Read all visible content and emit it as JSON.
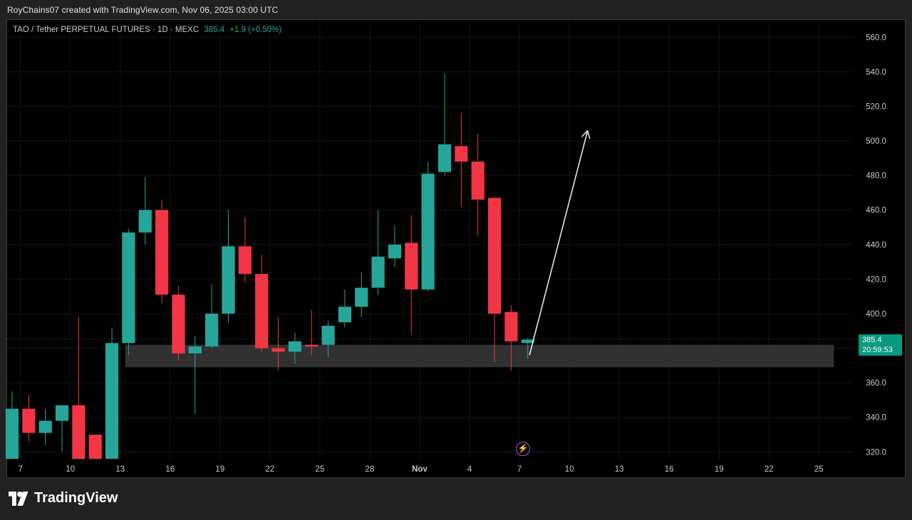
{
  "header": {
    "attribution": "RoyChains07 created with TradingView.com, Nov 06, 2025 03:00 UTC"
  },
  "legend": {
    "symbol": "TAO / Tether PERPETUAL FUTURES · 1D · MEXC",
    "last": "385.4",
    "change": "+1.9 (+0.50%)"
  },
  "price_tag": {
    "price": "385.4",
    "countdown": "20:59:53"
  },
  "brand": {
    "name": "TradingView",
    "icon": "tradingview-logo-icon"
  },
  "colors": {
    "up": "#26a69a",
    "down": "#f23645",
    "background": "#000000",
    "zone": "#3a3a3a",
    "arrow": "#e6e6e6"
  },
  "chart_data": {
    "type": "candlestick",
    "y_ticks": [
      "560.0",
      "540.0",
      "520.0",
      "500.0",
      "480.0",
      "460.0",
      "440.0",
      "420.0",
      "400.0",
      "380.0",
      "360.0",
      "340.0",
      "320.0"
    ],
    "y_tick_values": [
      560,
      540,
      520,
      500,
      480,
      460,
      440,
      420,
      400,
      380,
      360,
      340,
      320
    ],
    "x_ticks": [
      {
        "day": 7,
        "label": "7"
      },
      {
        "day": 10,
        "label": "10"
      },
      {
        "day": 13,
        "label": "13"
      },
      {
        "day": 16,
        "label": "16"
      },
      {
        "day": 19,
        "label": "19"
      },
      {
        "day": 22,
        "label": "22"
      },
      {
        "day": 25,
        "label": "25"
      },
      {
        "day": 28,
        "label": "28"
      },
      {
        "day": 31,
        "label": "Nov"
      },
      {
        "day": 34,
        "label": "4"
      },
      {
        "day": 37,
        "label": "7"
      },
      {
        "day": 40,
        "label": "10"
      },
      {
        "day": 43,
        "label": "13"
      },
      {
        "day": 46,
        "label": "16"
      },
      {
        "day": 49,
        "label": "19"
      },
      {
        "day": 52,
        "label": "22"
      },
      {
        "day": 55,
        "label": "25"
      }
    ],
    "ylim": [
      316,
      570
    ],
    "xlim": [
      6.2,
      57
    ],
    "candles": [
      {
        "d": 6.5,
        "o": 316,
        "h": 355,
        "l": 316,
        "c": 345
      },
      {
        "d": 7.5,
        "o": 345,
        "h": 353,
        "l": 326,
        "c": 331
      },
      {
        "d": 8.5,
        "o": 331,
        "h": 345,
        "l": 324,
        "c": 338
      },
      {
        "d": 9.5,
        "o": 338,
        "h": 347,
        "l": 320,
        "c": 347
      },
      {
        "d": 10.5,
        "o": 347,
        "h": 398,
        "l": 316,
        "c": 316
      },
      {
        "d": 11.5,
        "o": 330,
        "h": 330,
        "l": 316,
        "c": 316
      },
      {
        "d": 12.5,
        "o": 316,
        "h": 392,
        "l": 316,
        "c": 383
      },
      {
        "d": 13.5,
        "o": 383,
        "h": 449,
        "l": 376,
        "c": 447
      },
      {
        "d": 14.5,
        "o": 447,
        "h": 479,
        "l": 440,
        "c": 460
      },
      {
        "d": 15.5,
        "o": 460,
        "h": 466,
        "l": 406,
        "c": 411
      },
      {
        "d": 16.5,
        "o": 411,
        "h": 416,
        "l": 373,
        "c": 377
      },
      {
        "d": 17.5,
        "o": 377,
        "h": 387,
        "l": 342,
        "c": 381
      },
      {
        "d": 18.5,
        "o": 381,
        "h": 417,
        "l": 380,
        "c": 400
      },
      {
        "d": 19.5,
        "o": 400,
        "h": 460,
        "l": 395,
        "c": 439
      },
      {
        "d": 20.5,
        "o": 439,
        "h": 456,
        "l": 418,
        "c": 423
      },
      {
        "d": 21.5,
        "o": 423,
        "h": 434,
        "l": 378,
        "c": 380
      },
      {
        "d": 22.5,
        "o": 380,
        "h": 398,
        "l": 367,
        "c": 378
      },
      {
        "d": 23.5,
        "o": 378,
        "h": 389,
        "l": 371,
        "c": 384
      },
      {
        "d": 24.5,
        "o": 382,
        "h": 402,
        "l": 376,
        "c": 381
      },
      {
        "d": 25.5,
        "o": 382,
        "h": 396,
        "l": 375,
        "c": 393
      },
      {
        "d": 26.5,
        "o": 395,
        "h": 414,
        "l": 392,
        "c": 404
      },
      {
        "d": 27.5,
        "o": 404,
        "h": 424,
        "l": 398,
        "c": 415
      },
      {
        "d": 28.5,
        "o": 415,
        "h": 460,
        "l": 411,
        "c": 433
      },
      {
        "d": 29.5,
        "o": 432,
        "h": 451,
        "l": 427,
        "c": 440
      },
      {
        "d": 30.5,
        "o": 441,
        "h": 457,
        "l": 388,
        "c": 414
      },
      {
        "d": 31.5,
        "o": 414,
        "h": 488,
        "l": 413,
        "c": 481
      },
      {
        "d": 32.5,
        "o": 482,
        "h": 539,
        "l": 480,
        "c": 498
      },
      {
        "d": 33.5,
        "o": 497,
        "h": 516,
        "l": 462,
        "c": 488
      },
      {
        "d": 34.5,
        "o": 488,
        "h": 504,
        "l": 445,
        "c": 466
      },
      {
        "d": 35.5,
        "o": 467,
        "h": 468,
        "l": 372,
        "c": 400
      },
      {
        "d": 36.5,
        "o": 401,
        "h": 405,
        "l": 367,
        "c": 384
      },
      {
        "d": 37.5,
        "o": 383,
        "h": 386,
        "l": 374,
        "c": 385
      }
    ],
    "support_zone": {
      "from_day": 13.3,
      "to_day": 55.9,
      "low": 369,
      "high": 382
    },
    "arrow": {
      "from": {
        "d": 37.6,
        "p": 376
      },
      "to": {
        "d": 41.1,
        "p": 506
      }
    },
    "last_price": 385.4
  }
}
